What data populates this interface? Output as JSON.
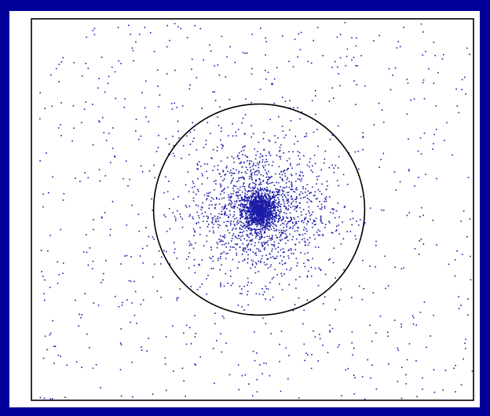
{
  "colors": {
    "background": "#000099",
    "panel": "#ffffff",
    "points": "#1a1aa6",
    "circle": "#000000",
    "frame": "#000000"
  },
  "chart_data": {
    "type": "scatter",
    "title": "",
    "xlabel": "",
    "ylabel": "",
    "xlim": [
      -1,
      1
    ],
    "ylim": [
      -1,
      1
    ],
    "grid": false,
    "legend": "none",
    "description_free": true,
    "series": [
      {
        "distribution": "radial-concentrated",
        "center": [
          0,
          0
        ],
        "core_sigma": 0.04,
        "mid_sigma": 0.16,
        "background_uniform": true,
        "point_count": 3400
      }
    ],
    "circle": {
      "center": [
        0,
        0
      ],
      "radius": 0.48
    }
  }
}
